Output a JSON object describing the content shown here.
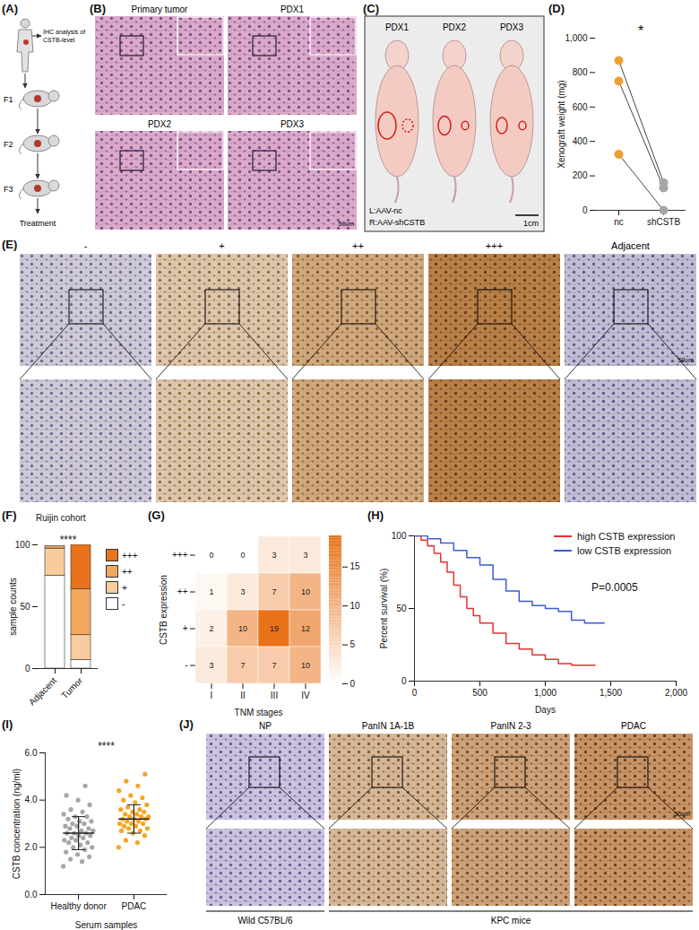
{
  "figure": {
    "A": {
      "label": "(A)",
      "annotation": "IHC analysis of CSTB-level",
      "steps": [
        "F1",
        "F2",
        "F3"
      ],
      "end": "Treatment"
    },
    "B": {
      "label": "(B)",
      "images": [
        "Primary tumor",
        "PDX1",
        "PDX2",
        "PDX3"
      ],
      "scale_bar": "50um"
    },
    "C": {
      "label": "(C)",
      "mice": [
        "PDX1",
        "PDX2",
        "PDX3"
      ],
      "left": "L:AAV-nc",
      "right": "R:AAV-shCSTB",
      "scale_bar": "1cm"
    },
    "E": {
      "label": "(E)",
      "images": [
        "-",
        "+",
        "++",
        "+++",
        "Adjacent"
      ],
      "scale_bar": "50um"
    },
    "J": {
      "label": "(J)",
      "images": [
        "NP",
        "PanIN 1A-1B",
        "PanIN 2-3",
        "PDAC"
      ],
      "groups": [
        "Wild C57BL/6",
        "KPC mice"
      ],
      "scale_bar": "50um"
    }
  },
  "chart_data": [
    {
      "label": "(D)",
      "type": "paired_dot",
      "categories": [
        "nc",
        "shCSTB"
      ],
      "colors": [
        "#f0a030",
        "#a6a6a6"
      ],
      "pairs": [
        [
          870,
          160
        ],
        [
          750,
          130
        ],
        [
          325,
          0
        ]
      ],
      "ylabel": "Xenograft weight (mg)",
      "ylim": [
        0,
        1000
      ],
      "yticks": [
        0,
        200,
        400,
        600,
        800,
        1000
      ],
      "annotations": [
        "*"
      ]
    },
    {
      "label": "(F)",
      "type": "bar",
      "stacked": true,
      "title": "Ruijin cohort",
      "categories": [
        "Adjacent",
        "Tumor"
      ],
      "series": [
        {
          "name": "+++",
          "color": "#e8731a",
          "values": [
            0,
            36
          ]
        },
        {
          "name": "++",
          "color": "#f2a65e",
          "values": [
            2,
            37
          ]
        },
        {
          "name": "+",
          "color": "#f8cc9c",
          "values": [
            22,
            20
          ]
        },
        {
          "name": "-",
          "color": "#ffffff",
          "values": [
            75,
            7
          ]
        }
      ],
      "ylabel": "sample counts",
      "ylim": [
        0,
        100
      ],
      "yticks": [
        0,
        50,
        100
      ],
      "annotations": [
        "****"
      ],
      "legend": "right"
    },
    {
      "label": "(G)",
      "type": "heatmap",
      "x": [
        "I",
        "II",
        "III",
        "IV"
      ],
      "y": [
        "+++",
        "++",
        "+",
        "-"
      ],
      "cells": [
        [
          0,
          0,
          3,
          3
        ],
        [
          1,
          3,
          7,
          10
        ],
        [
          2,
          10,
          19,
          12
        ],
        [
          3,
          7,
          7,
          10
        ]
      ],
      "xlabel": "TNM stages",
      "ylabel": "CSTB expression",
      "data_labels": true,
      "colorbar": {
        "range": [
          0,
          19
        ],
        "ticks": [
          0,
          5,
          10,
          15
        ],
        "colors": [
          "#ffffff",
          "#e8731a"
        ]
      }
    },
    {
      "label": "(H)",
      "type": "line",
      "line_style": "step",
      "series": [
        {
          "name": "high CSTB expression",
          "color": "#e8312f",
          "x": [
            0,
            50,
            100,
            150,
            200,
            250,
            300,
            350,
            400,
            450,
            500,
            600,
            700,
            800,
            900,
            1000,
            1100,
            1200,
            1380
          ],
          "values": [
            100,
            97,
            93,
            88,
            82,
            75,
            66,
            58,
            50,
            45,
            40,
            33,
            26,
            22,
            18,
            15,
            12,
            11,
            11
          ]
        },
        {
          "name": "low CSTB expression",
          "color": "#3b5bd6",
          "x": [
            0,
            100,
            200,
            300,
            400,
            500,
            600,
            700,
            800,
            900,
            1000,
            1100,
            1200,
            1300,
            1450
          ],
          "values": [
            100,
            98,
            95,
            90,
            85,
            80,
            70,
            62,
            55,
            52,
            50,
            48,
            42,
            40,
            40
          ]
        }
      ],
      "xlabel": "Days",
      "ylabel": "Percent survival (%)",
      "xlim": [
        0,
        2000
      ],
      "xticks": [
        0,
        500,
        1000,
        1500,
        2000
      ],
      "ylim": [
        0,
        100
      ],
      "yticks": [
        0,
        50,
        100
      ],
      "annotations": [
        "P=0.0005"
      ],
      "legend": "top-right"
    },
    {
      "label": "(I)",
      "type": "scatter",
      "categories": [
        "Healthy donor",
        "PDAC"
      ],
      "colors": [
        "#a6a6a6",
        "#f5a623"
      ],
      "values": [
        [
          1.2,
          1.4,
          1.5,
          1.6,
          1.7,
          1.8,
          1.9,
          2.0,
          2.0,
          2.1,
          2.2,
          2.2,
          2.3,
          2.3,
          2.4,
          2.4,
          2.5,
          2.5,
          2.6,
          2.6,
          2.6,
          2.7,
          2.7,
          2.8,
          2.8,
          2.9,
          2.9,
          3.0,
          3.0,
          3.1,
          3.1,
          3.2,
          3.3,
          3.3,
          3.4,
          3.5,
          3.6,
          3.8,
          4.0,
          4.2,
          4.6
        ],
        [
          2.0,
          2.2,
          2.3,
          2.5,
          2.6,
          2.7,
          2.7,
          2.8,
          2.8,
          2.9,
          2.9,
          3.0,
          3.0,
          3.0,
          3.1,
          3.1,
          3.2,
          3.2,
          3.2,
          3.3,
          3.3,
          3.3,
          3.4,
          3.4,
          3.5,
          3.5,
          3.6,
          3.6,
          3.7,
          3.8,
          3.9,
          4.0,
          4.1,
          4.2,
          4.4,
          4.6,
          4.8,
          5.1
        ]
      ],
      "mean": [
        2.6,
        3.2
      ],
      "sd": [
        0.7,
        0.6
      ],
      "ylabel": "CSTB concentration (ng/ml)",
      "xlabel": "Serum samples",
      "ylim": [
        0,
        6
      ],
      "yticks": [
        0,
        2,
        4,
        6
      ],
      "annotations": [
        "****"
      ]
    }
  ]
}
